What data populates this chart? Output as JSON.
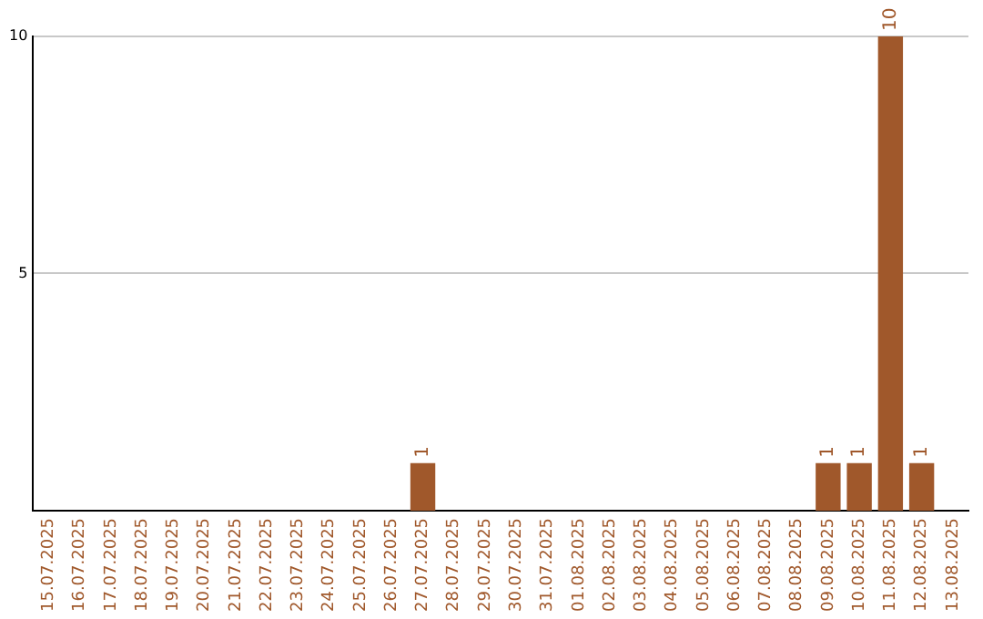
{
  "chart_data": {
    "type": "bar",
    "categories": [
      "15.07.2025",
      "16.07.2025",
      "17.07.2025",
      "18.07.2025",
      "19.07.2025",
      "20.07.2025",
      "21.07.2025",
      "22.07.2025",
      "23.07.2025",
      "24.07.2025",
      "25.07.2025",
      "26.07.2025",
      "27.07.2025",
      "28.07.2025",
      "29.07.2025",
      "30.07.2025",
      "31.07.2025",
      "01.08.2025",
      "02.08.2025",
      "03.08.2025",
      "04.08.2025",
      "05.08.2025",
      "06.08.2025",
      "07.08.2025",
      "08.08.2025",
      "09.08.2025",
      "10.08.2025",
      "11.08.2025",
      "12.08.2025",
      "13.08.2025"
    ],
    "values": [
      0,
      0,
      0,
      0,
      0,
      0,
      0,
      0,
      0,
      0,
      0,
      0,
      1,
      0,
      0,
      0,
      0,
      0,
      0,
      0,
      0,
      0,
      0,
      0,
      0,
      1,
      1,
      10,
      1,
      0
    ],
    "value_labels": [
      null,
      null,
      null,
      null,
      null,
      null,
      null,
      null,
      null,
      null,
      null,
      null,
      "1",
      null,
      null,
      null,
      null,
      null,
      null,
      null,
      null,
      null,
      null,
      null,
      null,
      "1",
      "1",
      "10",
      "1",
      null
    ],
    "color": "#a0582b",
    "ylim": [
      0,
      10
    ],
    "yticks": [
      5,
      10
    ],
    "grid": "y",
    "legend": false
  }
}
